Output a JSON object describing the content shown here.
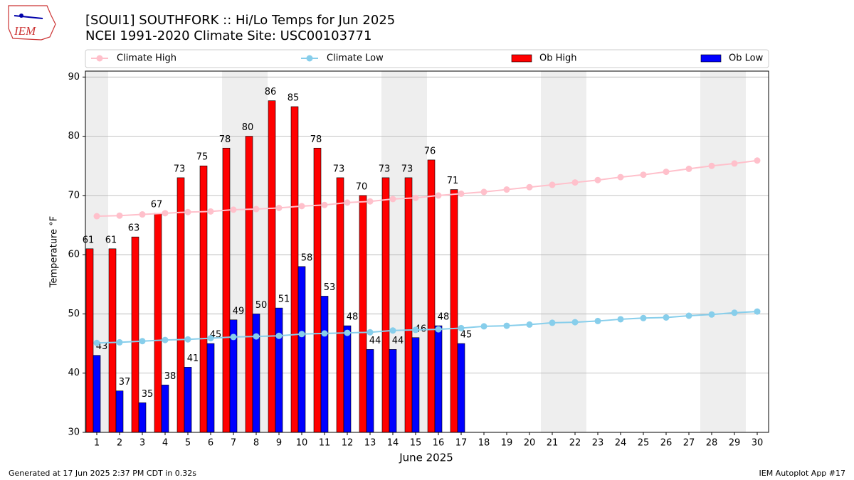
{
  "header": {
    "logo": "IEM"
  },
  "chart_data": {
    "type": "bar",
    "title": "[SOUI1] SOUTHFORK :: Hi/Lo Temps for Jun 2025",
    "subtitle": "NCEI 1991-2020 Climate Site: USC00103771",
    "x_label": "June 2025",
    "y_label": "Temperature °F",
    "categories": [
      "1",
      "2",
      "3",
      "4",
      "5",
      "6",
      "7",
      "8",
      "9",
      "10",
      "11",
      "12",
      "13",
      "14",
      "15",
      "16",
      "17",
      "18",
      "19",
      "20",
      "21",
      "22",
      "23",
      "24",
      "25",
      "26",
      "27",
      "28",
      "29",
      "30"
    ],
    "highlight_categories": [
      "1",
      "7",
      "8",
      "14",
      "15",
      "21",
      "22",
      "28",
      "29"
    ],
    "highlight_color": "#eeeeee",
    "series": [
      {
        "name": "Climate High",
        "type": "line",
        "color": "#ffc0cb",
        "values": [
          66.5,
          66.6,
          66.8,
          67.0,
          67.2,
          67.3,
          67.6,
          67.7,
          67.9,
          68.2,
          68.4,
          68.8,
          69.0,
          69.4,
          69.6,
          70.0,
          70.3,
          70.6,
          71.0,
          71.4,
          71.8,
          72.2,
          72.6,
          73.1,
          73.5,
          74.0,
          74.5,
          75.0,
          75.4,
          75.9
        ]
      },
      {
        "name": "Climate Low",
        "type": "line",
        "color": "#87ceeb",
        "values": [
          45.1,
          45.2,
          45.4,
          45.6,
          45.7,
          45.9,
          46.1,
          46.2,
          46.3,
          46.6,
          46.7,
          46.8,
          46.9,
          47.2,
          47.3,
          47.4,
          47.6,
          47.9,
          48.0,
          48.2,
          48.5,
          48.6,
          48.8,
          49.1,
          49.3,
          49.4,
          49.7,
          49.9,
          50.2,
          50.4
        ]
      },
      {
        "name": "Ob High",
        "type": "bar",
        "color": "#ff0000",
        "values": [
          61,
          61,
          63,
          67,
          73,
          75,
          78,
          80,
          86,
          85,
          78,
          73,
          70,
          73,
          73,
          76,
          71,
          null,
          null,
          null,
          null,
          null,
          null,
          null,
          null,
          null,
          null,
          null,
          null,
          null
        ]
      },
      {
        "name": "Ob Low",
        "type": "bar",
        "color": "#0000ff",
        "values": [
          43,
          37,
          35,
          38,
          41,
          45,
          49,
          50,
          51,
          58,
          53,
          48,
          44,
          44,
          46,
          48,
          45,
          null,
          null,
          null,
          null,
          null,
          null,
          null,
          null,
          null,
          null,
          null,
          null,
          null
        ]
      }
    ],
    "ylim": [
      30,
      91
    ],
    "yticks": [
      30,
      40,
      50,
      60,
      70,
      80,
      90
    ],
    "grid": true,
    "legend": "top"
  },
  "footer": {
    "left": "Generated at 17 Jun 2025 2:37 PM CDT in 0.32s",
    "right": "IEM Autoplot App #17"
  }
}
